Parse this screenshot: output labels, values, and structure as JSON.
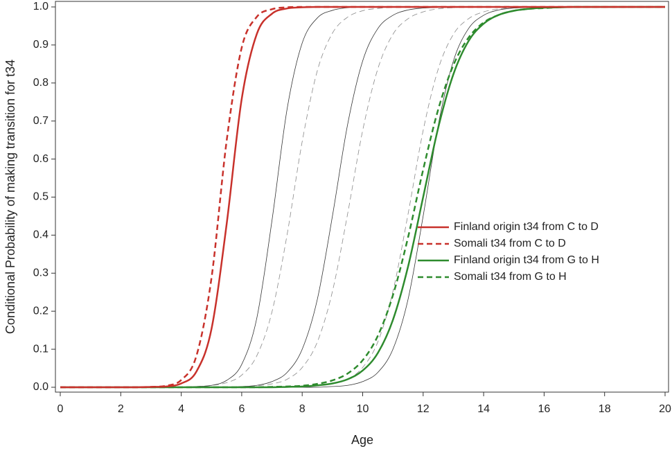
{
  "chart_data": {
    "type": "line",
    "x_label": "Age",
    "y_label": "Conditional Probability of making transition for t34",
    "x": [
      0,
      0.5,
      1,
      1.5,
      2,
      2.5,
      3,
      3.5,
      4,
      4.5,
      5,
      5.5,
      6,
      6.5,
      7,
      7.5,
      8,
      8.5,
      9,
      9.5,
      10,
      10.5,
      11,
      11.5,
      12,
      12.5,
      13,
      13.5,
      14,
      14.5,
      15,
      15.5,
      16,
      16.5,
      17,
      17.5,
      18,
      18.5,
      19,
      19.5,
      20
    ],
    "series": [
      {
        "name": "Finland origin t34 from C to D",
        "color": "#c8312b",
        "dash": false,
        "width": 2.5,
        "values": [
          0,
          0,
          0,
          0,
          0,
          0,
          0.001,
          0.002,
          0.01,
          0.041,
          0.153,
          0.428,
          0.758,
          0.929,
          0.982,
          0.996,
          0.999,
          1,
          1,
          1,
          1,
          1,
          1,
          1,
          1,
          1,
          1,
          1,
          1,
          1,
          1,
          1,
          1,
          1,
          1,
          1,
          1,
          1,
          1,
          1,
          1
        ]
      },
      {
        "name": "Somali t34 from C to D",
        "color": "#c8312b",
        "dash": true,
        "width": 2.5,
        "values": [
          0,
          0,
          0,
          0,
          0,
          0,
          0.001,
          0.004,
          0.019,
          0.082,
          0.287,
          0.647,
          0.893,
          0.974,
          0.994,
          0.999,
          1,
          1,
          1,
          1,
          1,
          1,
          1,
          1,
          1,
          1,
          1,
          1,
          1,
          1,
          1,
          1,
          1,
          1,
          1,
          1,
          1,
          1,
          1,
          1,
          1
        ]
      },
      {
        "name": "Finland origin t34 from G to H",
        "color": "#2e8b2e",
        "dash": false,
        "width": 2.5,
        "values": [
          0,
          0,
          0,
          0,
          0,
          0,
          0,
          0,
          0,
          0,
          0,
          0,
          0,
          0,
          0,
          0.001,
          0.002,
          0.005,
          0.01,
          0.021,
          0.044,
          0.09,
          0.177,
          0.317,
          0.5,
          0.683,
          0.823,
          0.91,
          0.956,
          0.979,
          0.99,
          0.995,
          0.998,
          0.999,
          1,
          1,
          1,
          1,
          1,
          1,
          1
        ]
      },
      {
        "name": "Somali t34 from G to H",
        "color": "#2e8b2e",
        "dash": true,
        "width": 2.5,
        "values": [
          0,
          0,
          0,
          0,
          0,
          0,
          0,
          0,
          0,
          0,
          0,
          0,
          0,
          0,
          0.001,
          0.002,
          0.004,
          0.009,
          0.018,
          0.036,
          0.071,
          0.135,
          0.242,
          0.394,
          0.572,
          0.731,
          0.847,
          0.919,
          0.959,
          0.979,
          0.99,
          0.995,
          0.997,
          0.999,
          1,
          1,
          1,
          1,
          1,
          1,
          1
        ]
      },
      {
        "color": "#333333",
        "dash": false,
        "width": 0.8,
        "values": [
          0,
          0,
          0,
          0,
          0,
          0,
          0,
          0,
          0.001,
          0.002,
          0.005,
          0.018,
          0.06,
          0.182,
          0.438,
          0.731,
          0.905,
          0.971,
          0.991,
          0.998,
          1,
          1,
          1,
          1,
          1,
          1,
          1,
          1,
          1,
          1,
          1,
          1,
          1,
          1,
          1,
          1,
          1,
          1,
          1,
          1,
          1
        ]
      },
      {
        "color": "#888888",
        "dash": true,
        "width": 0.8,
        "values": [
          0,
          0,
          0,
          0,
          0,
          0,
          0,
          0,
          0.001,
          0.002,
          0.005,
          0.012,
          0.032,
          0.083,
          0.198,
          0.401,
          0.646,
          0.832,
          0.931,
          0.973,
          0.99,
          0.996,
          0.999,
          1,
          1,
          1,
          1,
          1,
          1,
          1,
          1,
          1,
          1,
          1,
          1,
          1,
          1,
          1,
          1,
          1,
          1
        ]
      },
      {
        "color": "#333333",
        "dash": false,
        "width": 0.8,
        "values": [
          0,
          0,
          0,
          0,
          0,
          0,
          0,
          0,
          0,
          0,
          0,
          0,
          0.002,
          0.005,
          0.015,
          0.039,
          0.1,
          0.231,
          0.45,
          0.69,
          0.858,
          0.943,
          0.978,
          0.992,
          0.997,
          0.999,
          1,
          1,
          1,
          1,
          1,
          1,
          1,
          1,
          1,
          1,
          1,
          1,
          1,
          1,
          1
        ]
      },
      {
        "color": "#888888",
        "dash": true,
        "width": 0.8,
        "values": [
          0,
          0,
          0,
          0,
          0,
          0,
          0,
          0,
          0,
          0,
          0,
          0,
          0.002,
          0.004,
          0.009,
          0.021,
          0.052,
          0.119,
          0.252,
          0.455,
          0.675,
          0.837,
          0.928,
          0.969,
          0.987,
          0.995,
          0.998,
          1,
          1,
          1,
          1,
          1,
          1,
          1,
          1,
          1,
          1,
          1,
          1,
          1,
          1
        ]
      },
      {
        "color": "#888888",
        "dash": true,
        "width": 0.8,
        "values": [
          0,
          0,
          0,
          0,
          0,
          0,
          0,
          0,
          0,
          0,
          0,
          0,
          0,
          0,
          0,
          0,
          0.002,
          0.004,
          0.009,
          0.021,
          0.052,
          0.119,
          0.252,
          0.455,
          0.675,
          0.837,
          0.928,
          0.969,
          0.987,
          0.995,
          0.998,
          1,
          1,
          1,
          1,
          1,
          1,
          1,
          1,
          1,
          1
        ]
      },
      {
        "color": "#333333",
        "dash": false,
        "width": 0.8,
        "values": [
          0,
          0,
          0,
          0,
          0,
          0,
          0,
          0,
          0,
          0,
          0,
          0,
          0,
          0,
          0,
          0,
          0,
          0,
          0.002,
          0.005,
          0.015,
          0.039,
          0.1,
          0.231,
          0.45,
          0.69,
          0.858,
          0.943,
          0.978,
          0.992,
          0.997,
          0.999,
          1,
          1,
          1,
          1,
          1,
          1,
          1,
          1,
          1
        ]
      }
    ],
    "xlim": [
      0,
      20
    ],
    "xticks": [
      0,
      2,
      4,
      6,
      8,
      10,
      12,
      14,
      16,
      18,
      20
    ],
    "ylim": [
      0,
      1
    ],
    "yticks": [
      {
        "value": 0,
        "label": "0.0"
      },
      {
        "value": 0.1,
        "label": "0.1"
      },
      {
        "value": 0.2,
        "label": "0.2"
      },
      {
        "value": 0.3,
        "label": "0.3"
      },
      {
        "value": 0.4,
        "label": "0.4"
      },
      {
        "value": 0.5,
        "label": "0.5"
      },
      {
        "value": 0.6,
        "label": "0.6"
      },
      {
        "value": 0.7,
        "label": "0.7"
      },
      {
        "value": 0.8,
        "label": "0.8"
      },
      {
        "value": 0.9,
        "label": "0.9"
      },
      {
        "value": 1,
        "label": "1.0"
      }
    ],
    "grid": false,
    "legend": "right"
  }
}
